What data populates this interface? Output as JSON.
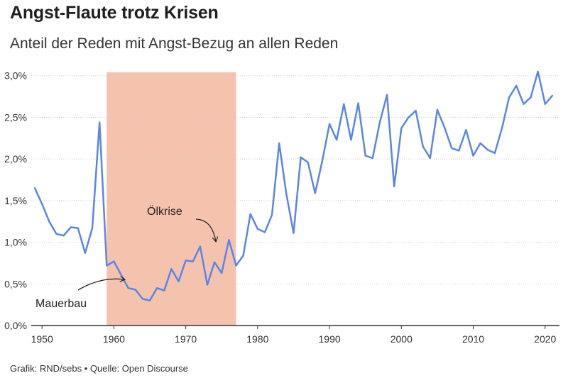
{
  "header": {
    "title": "Angst-Flaute trotz Krisen",
    "subtitle": "Anteil der Reden mit Angst-Bezug an allen Reden"
  },
  "footer": {
    "source": "Grafik: RND/sebs • Quelle: Open Discourse"
  },
  "colors": {
    "line": "#5b86e5",
    "highlight": "#f5c2ad",
    "grid": "#cccccc",
    "axis": "#333333"
  },
  "chart_data": {
    "type": "line",
    "title": "Angst-Flaute trotz Krisen",
    "subtitle": "Anteil der Reden mit Angst-Bezug an allen Reden",
    "xlabel": "",
    "ylabel": "",
    "xlim": [
      1948.5,
      2022
    ],
    "ylim": [
      0,
      3.1
    ],
    "y_ticks": [
      0,
      0.5,
      1.0,
      1.5,
      2.0,
      2.5,
      3.0
    ],
    "y_tick_labels": [
      "0,0%",
      "0,5%",
      "1,0%",
      "1,5%",
      "2,0%",
      "2,5%",
      "3,0%"
    ],
    "x_ticks": [
      1950,
      1960,
      1970,
      1980,
      1990,
      2000,
      2010,
      2020
    ],
    "x_tick_labels": [
      "1950",
      "1960",
      "1970",
      "1980",
      "1990",
      "2000",
      "2010",
      "2020"
    ],
    "grid": "horizontal",
    "highlight_range": [
      1959,
      1977
    ],
    "series": [
      {
        "x": [
          1949,
          1950,
          1951,
          1952,
          1953,
          1954,
          1955,
          1956,
          1957,
          1958,
          1959,
          1960,
          1961,
          1962,
          1963,
          1964,
          1965,
          1966,
          1967,
          1968,
          1969,
          1970,
          1971,
          1972,
          1973,
          1974,
          1975,
          1976,
          1977,
          1978,
          1979,
          1980,
          1981,
          1982,
          1983,
          1984,
          1985,
          1986,
          1987,
          1988,
          1989,
          1990,
          1991,
          1992,
          1993,
          1994,
          1995,
          1996,
          1997,
          1998,
          1999,
          2000,
          2001,
          2002,
          2003,
          2004,
          2005,
          2006,
          2007,
          2008,
          2009,
          2010,
          2011,
          2012,
          2013,
          2014,
          2015,
          2016,
          2017,
          2018,
          2019,
          2020,
          2021
        ],
        "values": [
          1.65,
          1.46,
          1.25,
          1.1,
          1.08,
          1.18,
          1.17,
          0.87,
          1.17,
          2.44,
          0.72,
          0.77,
          0.61,
          0.45,
          0.43,
          0.32,
          0.3,
          0.45,
          0.42,
          0.68,
          0.53,
          0.78,
          0.77,
          0.95,
          0.49,
          0.76,
          0.63,
          1.03,
          0.72,
          0.84,
          1.34,
          1.16,
          1.12,
          1.33,
          2.19,
          1.58,
          1.11,
          2.02,
          1.96,
          1.59,
          1.98,
          2.42,
          2.23,
          2.66,
          2.23,
          2.67,
          2.04,
          2.01,
          2.44,
          2.77,
          1.67,
          2.37,
          2.5,
          2.58,
          2.15,
          2.01,
          2.59,
          2.38,
          2.13,
          2.1,
          2.35,
          2.04,
          2.19,
          2.11,
          2.07,
          2.37,
          2.74,
          2.88,
          2.66,
          2.74,
          3.05,
          2.66,
          2.76
        ]
      }
    ],
    "annotations": [
      {
        "text": "Ölkrise",
        "x": 1975.5,
        "y": 1.0
      },
      {
        "text": "Mauerbau",
        "x": 1961,
        "y": 0.58
      }
    ]
  }
}
